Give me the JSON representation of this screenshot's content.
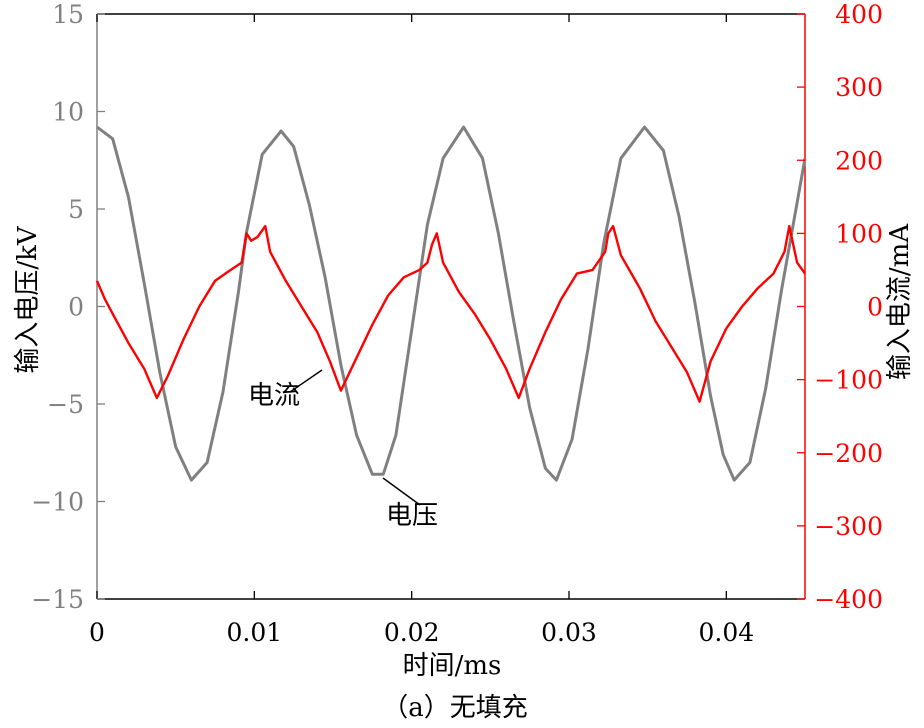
{
  "chart_data": {
    "type": "line",
    "caption": "（a）无填充",
    "xlabel": "时间/ms",
    "ylabel_left": "输入电压/kV",
    "ylabel_right": "输入电流/mA",
    "xlim": [
      0,
      0.045
    ],
    "ylim_left": [
      -15,
      15
    ],
    "ylim_right": [
      -400,
      400
    ],
    "x_ticks": [
      0,
      0.01,
      0.02,
      0.03,
      0.04
    ],
    "x_tick_labels": [
      "0",
      "0.01",
      "0.02",
      "0.03",
      "0.04"
    ],
    "y_left_ticks": [
      -15,
      -10,
      -5,
      0,
      5,
      10,
      15
    ],
    "y_left_tick_labels": [
      "−15",
      "−10",
      "−5",
      "0",
      "5",
      "10",
      "15"
    ],
    "y_right_ticks": [
      -400,
      -300,
      -200,
      -100,
      0,
      100,
      200,
      300,
      400
    ],
    "y_right_tick_labels": [
      "−400",
      "−300",
      "−200",
      "−100",
      "0",
      "100",
      "200",
      "300",
      "400"
    ],
    "grid": false,
    "colors": {
      "voltage": "#808080",
      "current": "#ff0000",
      "axis_left": "#808080",
      "axis_right": "#ff0000"
    },
    "annotations": [
      {
        "text": "电流",
        "target": "current"
      },
      {
        "text": "电压",
        "target": "voltage"
      }
    ],
    "series": [
      {
        "name": "电压",
        "axis": "left",
        "x": [
          0,
          0.001,
          0.002,
          0.003,
          0.004,
          0.005,
          0.006,
          0.007,
          0.008,
          0.009,
          0.0095,
          0.0105,
          0.0117,
          0.0125,
          0.0135,
          0.0145,
          0.0155,
          0.0165,
          0.0175,
          0.0182,
          0.019,
          0.02,
          0.021,
          0.022,
          0.0233,
          0.0245,
          0.0255,
          0.0265,
          0.0275,
          0.0285,
          0.0292,
          0.0302,
          0.0312,
          0.0322,
          0.0333,
          0.0348,
          0.036,
          0.037,
          0.038,
          0.039,
          0.0398,
          0.0405,
          0.0415,
          0.0425,
          0.0435,
          0.045
        ],
        "y": [
          9.2,
          8.6,
          5.6,
          1.2,
          -3.4,
          -7.2,
          -8.9,
          -8.0,
          -4.4,
          0.8,
          3.8,
          7.8,
          9.0,
          8.2,
          5.2,
          1.5,
          -3.0,
          -6.6,
          -8.6,
          -8.6,
          -6.6,
          -1.2,
          4.2,
          7.6,
          9.2,
          7.6,
          3.8,
          -0.8,
          -5.2,
          -8.3,
          -8.9,
          -6.8,
          -2.2,
          3.2,
          7.6,
          9.2,
          8.0,
          4.6,
          0.2,
          -4.6,
          -7.6,
          -8.9,
          -8.0,
          -4.2,
          0.8,
          7.6
        ]
      },
      {
        "name": "电流",
        "axis": "right",
        "x": [
          0,
          0.0005,
          0.001,
          0.002,
          0.003,
          0.0038,
          0.0045,
          0.0055,
          0.0065,
          0.0075,
          0.0085,
          0.0092,
          0.0095,
          0.0098,
          0.0102,
          0.0107,
          0.011,
          0.012,
          0.013,
          0.014,
          0.0148,
          0.0155,
          0.0165,
          0.0175,
          0.0185,
          0.0195,
          0.0205,
          0.021,
          0.0213,
          0.0216,
          0.022,
          0.023,
          0.024,
          0.025,
          0.026,
          0.0268,
          0.0275,
          0.0285,
          0.0295,
          0.0305,
          0.0315,
          0.0323,
          0.0325,
          0.0328,
          0.0333,
          0.0345,
          0.0355,
          0.0365,
          0.0375,
          0.0383,
          0.039,
          0.04,
          0.041,
          0.042,
          0.043,
          0.0437,
          0.044,
          0.0445,
          0.045
        ],
        "y": [
          35,
          10,
          -10,
          -50,
          -85,
          -125,
          -95,
          -45,
          0,
          35,
          50,
          60,
          100,
          90,
          95,
          110,
          75,
          35,
          0,
          -35,
          -75,
          -115,
          -70,
          -25,
          15,
          40,
          50,
          60,
          85,
          100,
          60,
          20,
          -10,
          -45,
          -85,
          -125,
          -85,
          -35,
          10,
          45,
          50,
          75,
          100,
          110,
          70,
          25,
          -20,
          -55,
          -90,
          -130,
          -75,
          -30,
          0,
          25,
          45,
          75,
          110,
          60,
          45
        ]
      }
    ]
  }
}
